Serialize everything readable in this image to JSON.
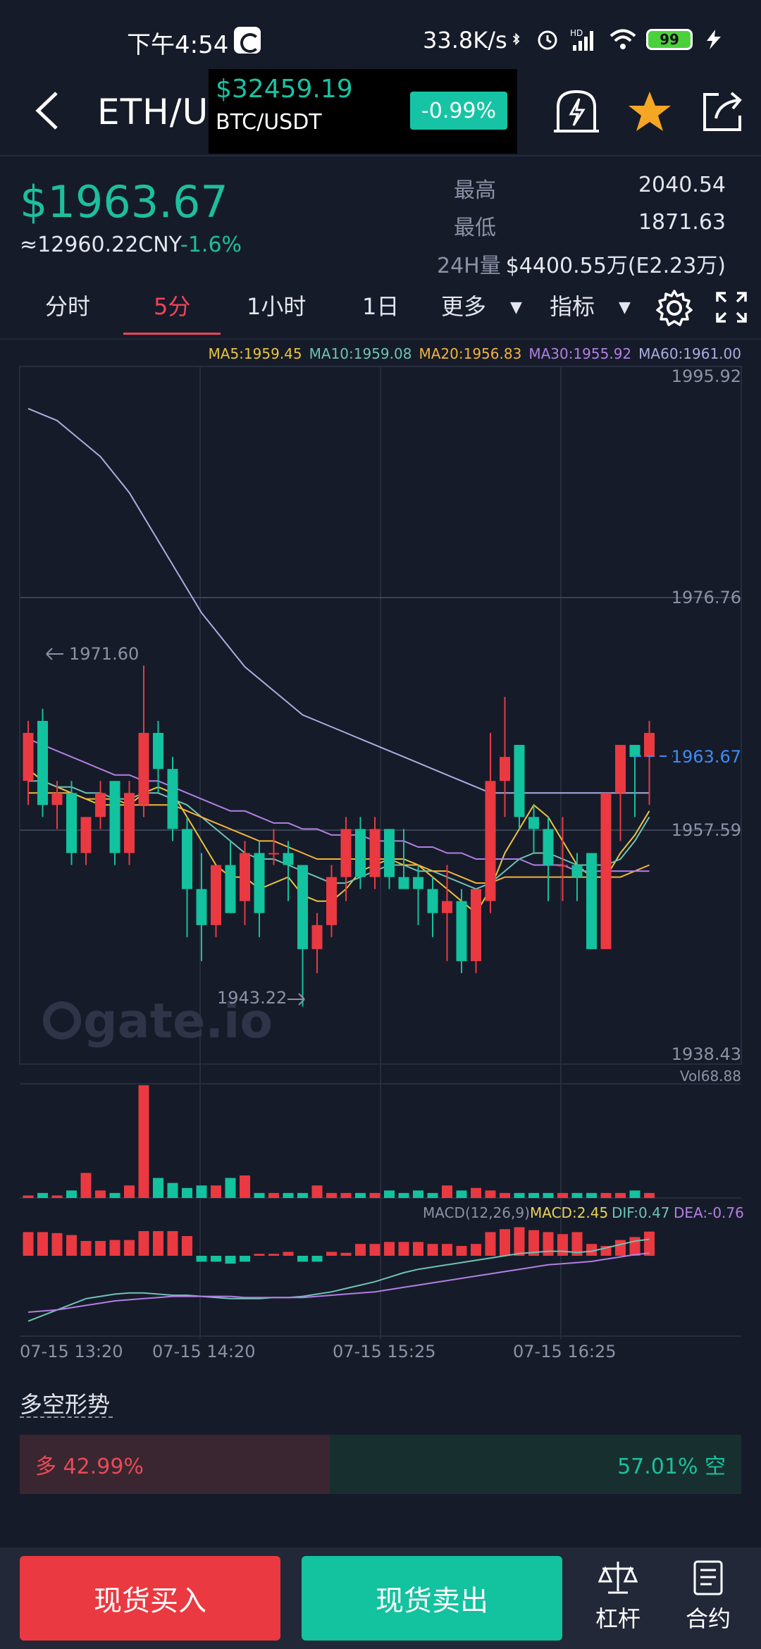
{
  "status_bar": {
    "time": "下午4:54",
    "net_speed": "33.8K/s",
    "battery": "99"
  },
  "header": {
    "pair": "ETH/USDT",
    "popup": {
      "price": "$32459.19",
      "pair": "BTC/USDT",
      "change": "-0.99%"
    }
  },
  "summary": {
    "last_price": "$1963.67",
    "cny_price": "≈12960.22CNY",
    "change_pct": "-1.6%",
    "high_label": "最高",
    "high_value": "2040.54",
    "low_label": "最低",
    "low_value": "1871.63",
    "vol_label": "24H量",
    "vol_value": "$4400.55万(E2.23万)"
  },
  "tabs": [
    "分时",
    "5分",
    "1小时",
    "1日",
    "更多",
    "指标"
  ],
  "active_tab": "5分",
  "ma_legend": [
    {
      "text": "MA5:1959.45",
      "color": "#e9c53f"
    },
    {
      "text": "MA10:1959.08",
      "color": "#6fc2b4"
    },
    {
      "text": "MA20:1956.83",
      "color": "#f3b33b"
    },
    {
      "text": "MA30:1955.92",
      "color": "#b27fe3"
    },
    {
      "text": "MA60:1961.00",
      "color": "#a8aedf"
    }
  ],
  "chart_labels": {
    "y_top": "1995.92",
    "y_1976": "1976.76",
    "y_current": "1963.67",
    "y_1957": "1957.59",
    "y_bottom": "1938.43",
    "high_marker": "1971.60",
    "low_marker": "1943.22",
    "watermark": "gate.io",
    "vol_label": "Vol68.88",
    "macd_label": "MACD(12,26,9)",
    "macd_value": "MACD:2.45",
    "dif_value": "DIF:0.47",
    "dea_value": "DEA:-0.76"
  },
  "colors": {
    "up": "#ea3941",
    "down": "#13c29e",
    "current_price": "#3d8cf2"
  },
  "chart_data": {
    "type": "candlestick",
    "x_tick_labels": [
      "07-15 13:20",
      "07-15 14:20",
      "07-15 15:25",
      "07-15 16:25"
    ],
    "ylim": [
      1938.43,
      1995.92
    ],
    "current_price": 1963.67,
    "high_marker": 1971.6,
    "low_marker": 1943.22,
    "candles": [
      [
        1962,
        1967,
        1960,
        1966
      ],
      [
        1967,
        1968,
        1959,
        1960
      ],
      [
        1960,
        1962,
        1958,
        1961
      ],
      [
        1961,
        1962,
        1955,
        1956
      ],
      [
        1956,
        1959,
        1955,
        1959
      ],
      [
        1959,
        1962,
        1958,
        1961
      ],
      [
        1962,
        1962,
        1955,
        1956
      ],
      [
        1956,
        1962,
        1955,
        1961
      ],
      [
        1960,
        1971.6,
        1959,
        1966
      ],
      [
        1966,
        1967,
        1961,
        1963
      ],
      [
        1963,
        1964,
        1957,
        1958
      ],
      [
        1958,
        1959,
        1949,
        1953
      ],
      [
        1953,
        1956,
        1947,
        1950
      ],
      [
        1950,
        1955,
        1949,
        1955
      ],
      [
        1955,
        1957,
        1951,
        1951
      ],
      [
        1952,
        1957,
        1950,
        1956
      ],
      [
        1956,
        1957,
        1949,
        1951
      ],
      [
        1956,
        1958,
        1955,
        1956
      ],
      [
        1956,
        1957,
        1952,
        1955
      ],
      [
        1955,
        1955,
        1943.22,
        1948
      ],
      [
        1948,
        1951,
        1946,
        1950
      ],
      [
        1950,
        1955,
        1949,
        1954
      ],
      [
        1954,
        1959,
        1952,
        1958
      ],
      [
        1958,
        1959,
        1953,
        1954
      ],
      [
        1954,
        1959,
        1953,
        1958
      ],
      [
        1958,
        1958,
        1953,
        1954
      ],
      [
        1954,
        1958,
        1953,
        1953
      ],
      [
        1954,
        1955,
        1950,
        1953
      ],
      [
        1953,
        1954,
        1949,
        1951
      ],
      [
        1951,
        1955,
        1947,
        1952
      ],
      [
        1952,
        1953,
        1946,
        1947
      ],
      [
        1947,
        1953,
        1946,
        1953
      ],
      [
        1952,
        1966,
        1951,
        1962
      ],
      [
        1962,
        1969,
        1959,
        1964
      ],
      [
        1965,
        1965,
        1958,
        1959
      ],
      [
        1959,
        1960,
        1956,
        1958
      ],
      [
        1958,
        1959,
        1952,
        1955
      ],
      [
        1955,
        1959,
        1952,
        1955
      ],
      [
        1955,
        1956,
        1952,
        1954
      ],
      [
        1956,
        1956,
        1948,
        1948
      ],
      [
        1948,
        1961,
        1948,
        1961
      ],
      [
        1961,
        1965,
        1957,
        1965
      ],
      [
        1965,
        1965,
        1959,
        1964
      ],
      [
        1964,
        1967,
        1960,
        1966
      ]
    ],
    "ma_lines": {
      "MA5": [
        1963,
        1962,
        1961.5,
        1961,
        1960.5,
        1960,
        1960,
        1960,
        1961,
        1961.5,
        1961,
        1959,
        1957,
        1955,
        1954,
        1954,
        1953,
        1953.5,
        1954,
        1952.5,
        1952,
        1952,
        1953,
        1954.5,
        1955,
        1955.5,
        1955.5,
        1955,
        1954,
        1953,
        1952,
        1951,
        1953,
        1956,
        1958,
        1960,
        1959,
        1957,
        1955,
        1954,
        1954,
        1956,
        1957.5,
        1959.5
      ],
      "MA10": [
        1962,
        1962,
        1961.5,
        1961.5,
        1961,
        1961,
        1960.5,
        1960.5,
        1961,
        1961,
        1960.5,
        1960,
        1959,
        1958,
        1957,
        1956,
        1955.5,
        1955.5,
        1955,
        1954.5,
        1954,
        1953.5,
        1953.5,
        1954,
        1954.5,
        1955,
        1955,
        1954.5,
        1954.5,
        1954,
        1953.5,
        1953,
        1953.5,
        1954.5,
        1955.5,
        1956,
        1956,
        1955.5,
        1955,
        1955,
        1955,
        1955.5,
        1957,
        1959
      ],
      "MA20": [
        1961,
        1961,
        1961,
        1961,
        1960.5,
        1960.5,
        1960.5,
        1960,
        1960,
        1960,
        1960,
        1959.5,
        1959,
        1958.5,
        1958,
        1957.5,
        1957,
        1957,
        1956.5,
        1956,
        1955.5,
        1955.5,
        1955.5,
        1955.5,
        1955.5,
        1955.5,
        1955,
        1955,
        1954.5,
        1954.5,
        1954,
        1953.5,
        1953.5,
        1954,
        1954,
        1954,
        1954,
        1954,
        1954,
        1954,
        1954,
        1954,
        1954.5,
        1955
      ],
      "MA30": [
        1965.5,
        1965,
        1964.5,
        1964,
        1963.5,
        1963,
        1962.5,
        1962.5,
        1962,
        1962,
        1961.5,
        1961,
        1960.5,
        1960,
        1959.5,
        1959.5,
        1959,
        1958.5,
        1958.5,
        1958,
        1958,
        1957.5,
        1957.5,
        1957.5,
        1957,
        1957,
        1957,
        1956.5,
        1956.5,
        1956,
        1956,
        1955.5,
        1955.5,
        1955.5,
        1955.5,
        1955,
        1955,
        1955,
        1954.5,
        1954.5,
        1954.5,
        1954.5,
        1954.5,
        1954.5
      ],
      "MA60": [
        1993,
        1992.5,
        1992,
        1991,
        1990,
        1989,
        1987.5,
        1986,
        1984,
        1982,
        1980,
        1978,
        1976,
        1974.5,
        1973,
        1971.5,
        1970.5,
        1969.5,
        1968.5,
        1967.5,
        1967,
        1966.5,
        1966,
        1965.5,
        1965,
        1964.5,
        1964,
        1963.5,
        1963,
        1962.5,
        1962,
        1961.5,
        1961,
        1961,
        1961,
        1961,
        1961,
        1961,
        1961,
        1961,
        1961,
        1961,
        1961,
        1961
      ]
    },
    "volume": [
      1,
      2,
      1,
      3,
      10,
      3,
      2,
      5,
      45,
      8,
      6,
      4,
      5,
      5,
      8,
      9,
      2,
      2,
      2,
      2,
      5,
      2,
      2,
      2,
      2,
      3,
      2,
      3,
      2,
      5,
      3,
      4,
      3,
      2,
      2,
      2,
      2,
      2,
      2,
      2,
      2,
      2,
      3,
      2
    ],
    "macd_hist": [
      2.4,
      2.4,
      2.3,
      2.1,
      1.5,
      1.5,
      1.6,
      1.6,
      2.5,
      2.5,
      2.5,
      2.0,
      -0.6,
      -0.6,
      -0.8,
      -0.6,
      0.2,
      0.2,
      0.4,
      -0.6,
      -0.6,
      0.4,
      0.3,
      1.2,
      1.2,
      1.4,
      1.4,
      1.4,
      1.2,
      1.2,
      1.0,
      1.2,
      2.4,
      2.7,
      2.9,
      2.6,
      2.4,
      2.2,
      2.4,
      1.2,
      1.0,
      1.6,
      1.9,
      2.45
    ],
    "dif_line": [
      -6.8,
      -6.3,
      -5.8,
      -5.3,
      -4.8,
      -4.6,
      -4.4,
      -4.3,
      -4.3,
      -4.4,
      -4.5,
      -4.5,
      -4.6,
      -4.7,
      -4.8,
      -4.8,
      -4.8,
      -4.7,
      -4.7,
      -4.6,
      -4.4,
      -4.2,
      -3.9,
      -3.6,
      -3.3,
      -2.9,
      -2.5,
      -2.2,
      -2.0,
      -1.8,
      -1.6,
      -1.4,
      -1.2,
      -1.0,
      -0.8,
      -0.7,
      -0.6,
      -0.6,
      -0.7,
      -0.6,
      -0.3,
      0.0,
      0.3,
      0.47
    ],
    "dea_line": [
      -6.0,
      -5.9,
      -5.8,
      -5.6,
      -5.4,
      -5.2,
      -5.0,
      -4.9,
      -4.8,
      -4.7,
      -4.6,
      -4.6,
      -4.6,
      -4.6,
      -4.6,
      -4.7,
      -4.7,
      -4.7,
      -4.7,
      -4.7,
      -4.6,
      -4.5,
      -4.4,
      -4.3,
      -4.2,
      -4.0,
      -3.8,
      -3.6,
      -3.4,
      -3.2,
      -3.0,
      -2.8,
      -2.6,
      -2.4,
      -2.2,
      -2.0,
      -1.8,
      -1.7,
      -1.6,
      -1.5,
      -1.3,
      -1.1,
      -0.9,
      -0.76
    ]
  },
  "sentiment": {
    "title": "多空形势",
    "long_label": "多 42.99%",
    "short_label": "57.01% 空",
    "long_ratio": 0.4299
  },
  "bottom_bar": {
    "buy_label": "现货买入",
    "sell_label": "现货卖出",
    "leverage_label": "杠杆",
    "contract_label": "合约"
  }
}
